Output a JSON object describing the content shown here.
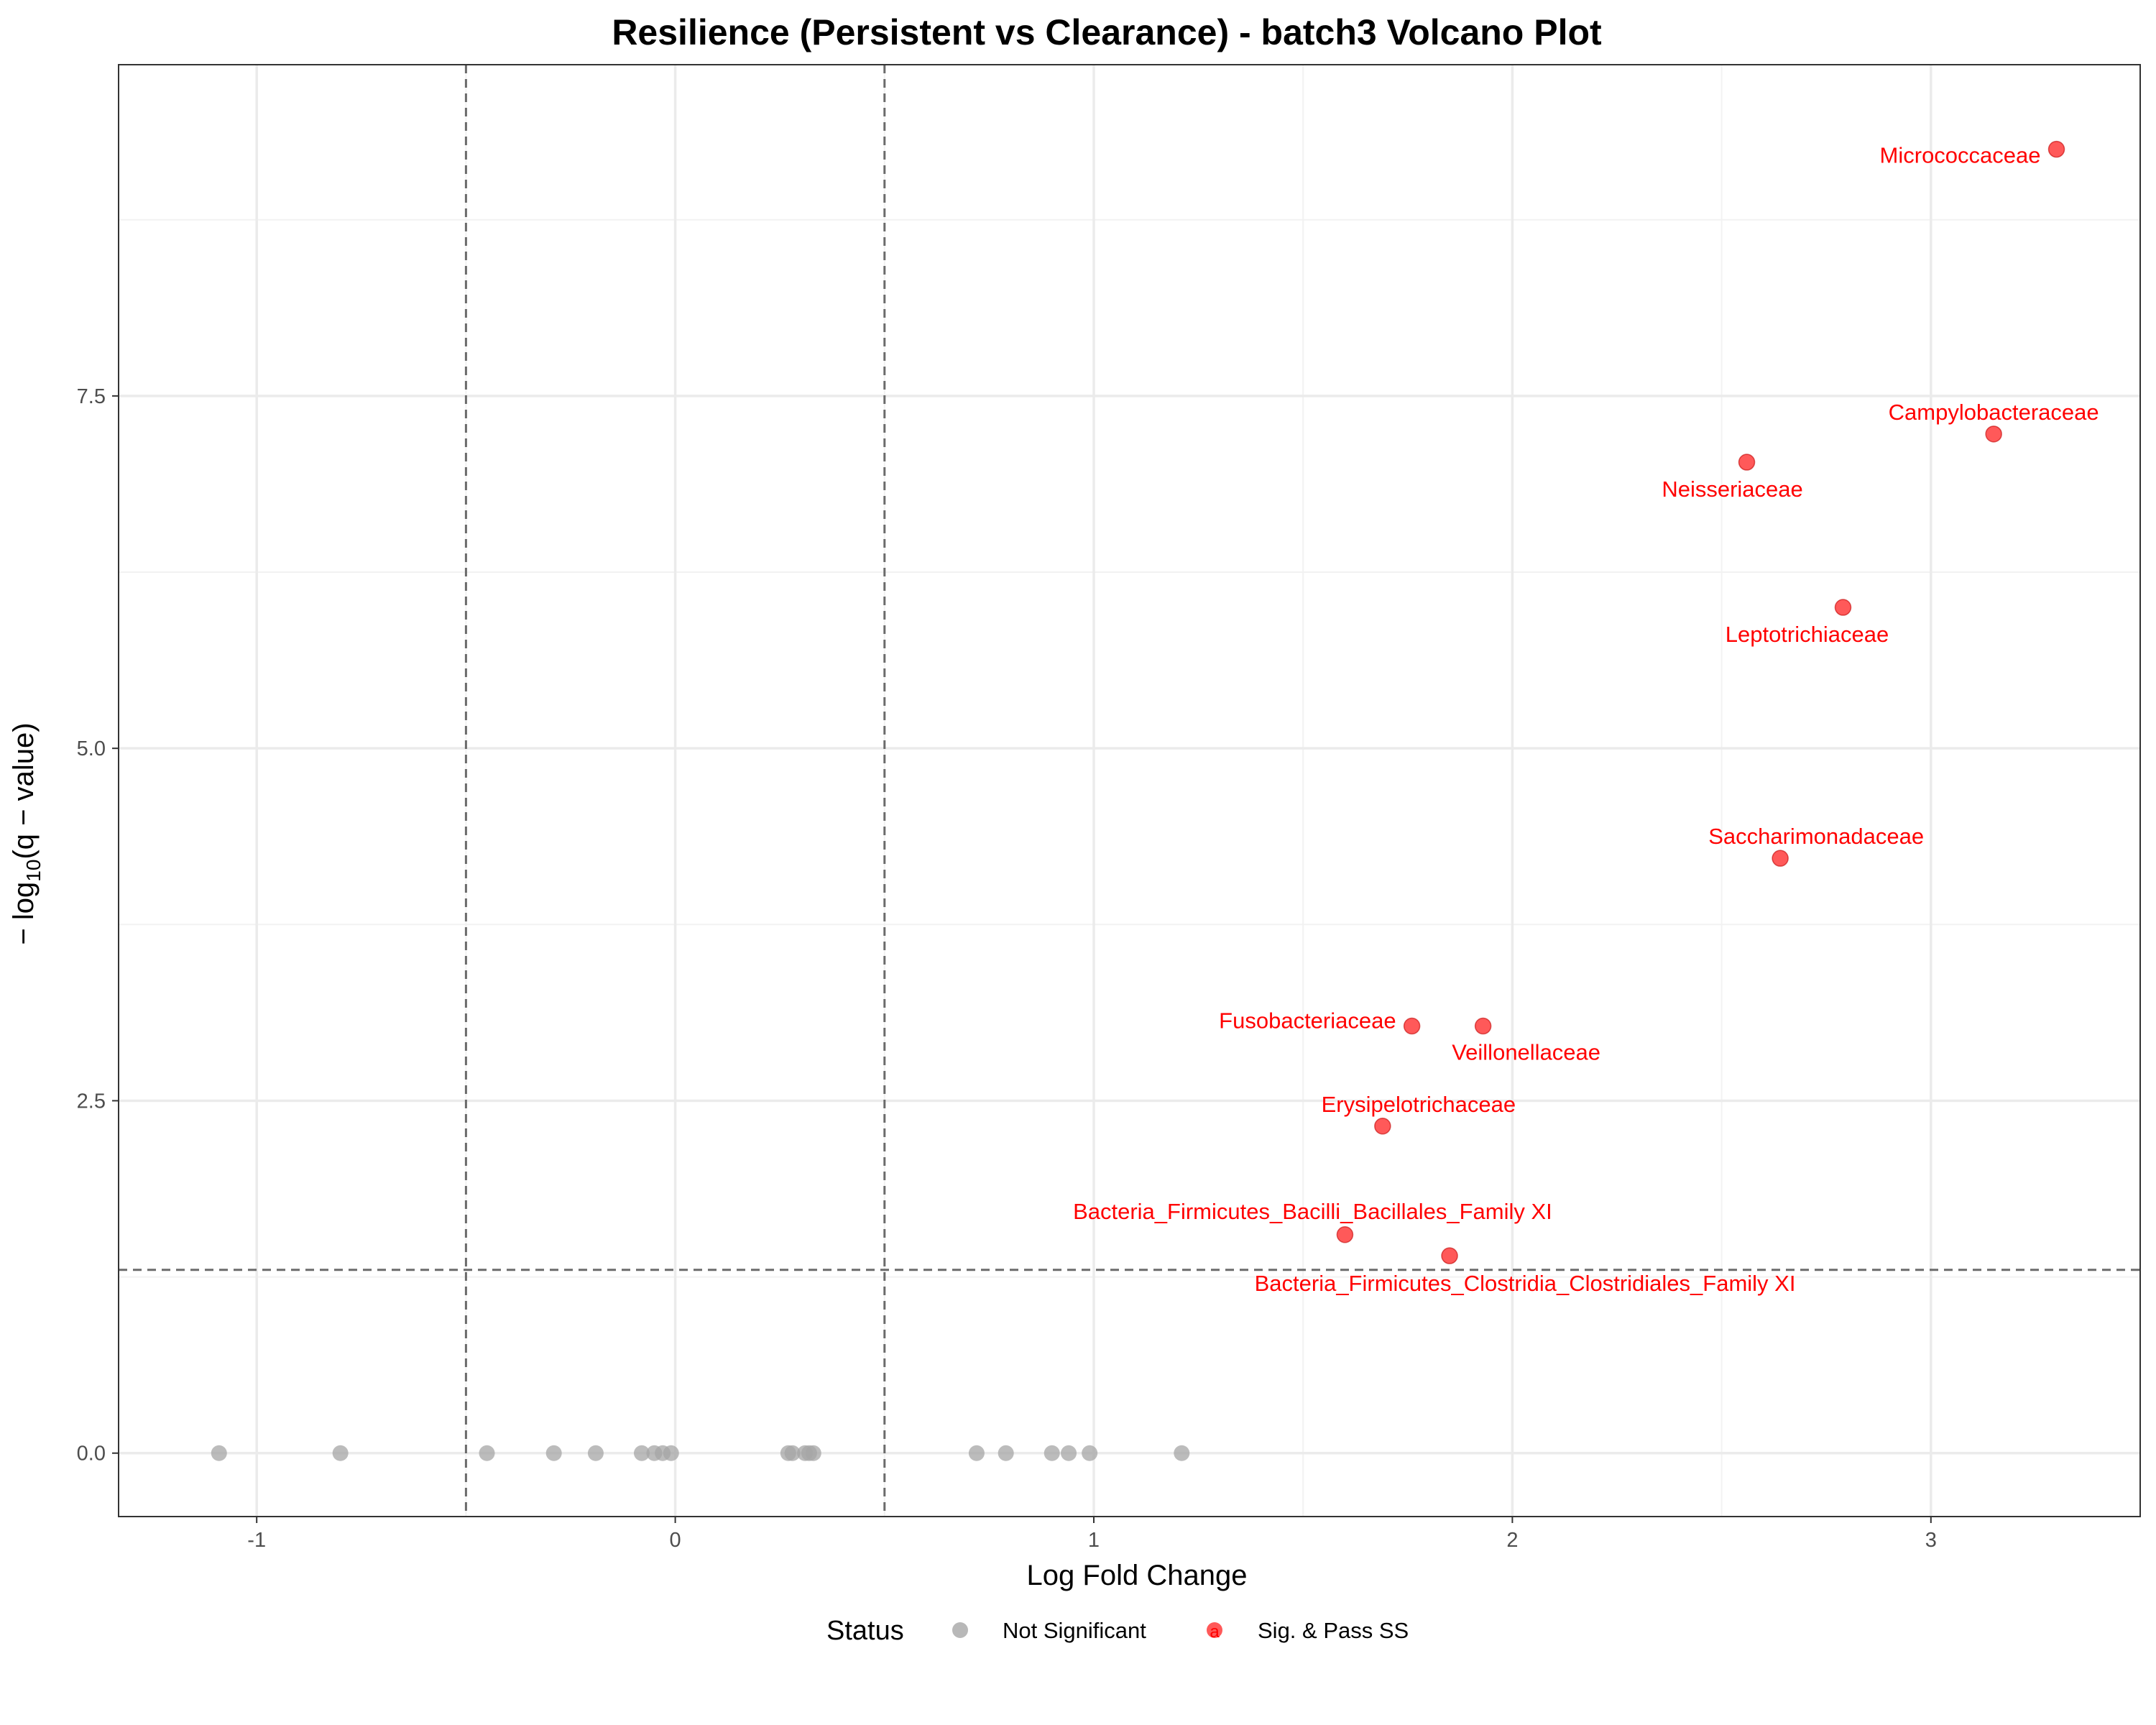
{
  "chart_data": {
    "type": "scatter",
    "title": "Resilience (Persistent vs Clearance) - batch3 Volcano Plot",
    "xlabel": "Log Fold Change",
    "ylabel": "− log10(q − value)",
    "ylabel_parts": {
      "prefix": "− log",
      "subscript": "10",
      "suffix": "(q − value)"
    },
    "xlim": [
      -1.33,
      3.5
    ],
    "ylim": [
      -0.45,
      9.85
    ],
    "x_ticks": [
      -1,
      0,
      1,
      2,
      3
    ],
    "x_tick_labels": [
      "-1",
      "0",
      "1",
      "2",
      "3"
    ],
    "y_ticks": [
      0,
      2.5,
      5,
      7.5
    ],
    "y_tick_labels": [
      "0.0",
      "2.5",
      "5.0",
      "7.5"
    ],
    "grid": true,
    "thresholds": {
      "x": [
        -0.5,
        0.5
      ],
      "y": 1.3
    },
    "legend": {
      "title": "Status",
      "position": "bottom",
      "entries": [
        {
          "label": "Not Significant",
          "color": "#a6a6a6"
        },
        {
          "label": "Sig. & Pass SS",
          "color": "#ff0000"
        }
      ]
    },
    "series": [
      {
        "name": "Not Significant",
        "color": "#a6a6a6",
        "points": [
          {
            "x": -1.09,
            "y": 0
          },
          {
            "x": -0.8,
            "y": 0
          },
          {
            "x": -0.45,
            "y": 0
          },
          {
            "x": -0.29,
            "y": 0
          },
          {
            "x": -0.19,
            "y": 0
          },
          {
            "x": -0.08,
            "y": 0
          },
          {
            "x": -0.05,
            "y": 0
          },
          {
            "x": -0.03,
            "y": 0
          },
          {
            "x": -0.01,
            "y": 0
          },
          {
            "x": 0.27,
            "y": 0
          },
          {
            "x": 0.28,
            "y": 0
          },
          {
            "x": 0.31,
            "y": 0
          },
          {
            "x": 0.32,
            "y": 0
          },
          {
            "x": 0.33,
            "y": 0
          },
          {
            "x": 0.72,
            "y": 0
          },
          {
            "x": 0.79,
            "y": 0
          },
          {
            "x": 0.9,
            "y": 0
          },
          {
            "x": 0.94,
            "y": 0
          },
          {
            "x": 0.99,
            "y": 0
          },
          {
            "x": 1.21,
            "y": 0
          }
        ]
      },
      {
        "name": "Sig. & Pass SS",
        "color": "#ff0000",
        "points": [
          {
            "x": 3.3,
            "y": 9.25,
            "label": "Micrococcaceae"
          },
          {
            "x": 3.15,
            "y": 7.23,
            "label": "Campylobacteraceae"
          },
          {
            "x": 2.56,
            "y": 7.03,
            "label": "Neisseriaceae"
          },
          {
            "x": 2.79,
            "y": 6.0,
            "label": "Leptotrichiaceae"
          },
          {
            "x": 2.64,
            "y": 4.22,
            "label": "Saccharimonadaceae"
          },
          {
            "x": 1.76,
            "y": 3.03,
            "label": "Fusobacteriaceae"
          },
          {
            "x": 1.93,
            "y": 3.03,
            "label": "Veillonellaceae"
          },
          {
            "x": 1.69,
            "y": 2.32,
            "label": "Erysipelotrichaceae"
          },
          {
            "x": 1.6,
            "y": 1.55,
            "label": "Bacteria_Firmicutes_Bacilli_Bacillales_Family XI"
          },
          {
            "x": 1.85,
            "y": 1.4,
            "label": "Bacteria_Firmicutes_Clostridia_Clostridiales_Family XI"
          }
        ]
      }
    ]
  }
}
